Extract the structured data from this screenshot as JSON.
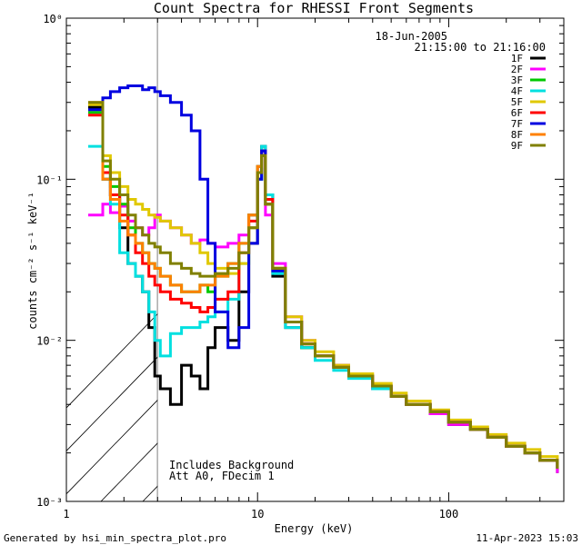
{
  "chart_data": {
    "type": "line",
    "title": "Count Spectra for RHESSI Front Segments",
    "xlabel": "Energy (keV)",
    "ylabel": "counts cm⁻² s⁻¹ keV⁻¹",
    "xscale": "log",
    "yscale": "log",
    "xlim": [
      1,
      400
    ],
    "ylim": [
      0.001,
      1
    ],
    "x_ticks": [
      {
        "value": 1,
        "label": "1"
      },
      {
        "value": 10,
        "label": "10"
      },
      {
        "value": 100,
        "label": "100"
      }
    ],
    "y_ticks": [
      {
        "value": 1,
        "label": "10⁰"
      },
      {
        "value": 0.1,
        "label": "10⁻¹"
      },
      {
        "value": 0.01,
        "label": "10⁻²"
      },
      {
        "value": 0.001,
        "label": "10⁻³"
      }
    ],
    "date_label": "18-Jun-2005",
    "time_range_label": "21:15:00 to 21:16:00",
    "hatched_region_max_keV": 3,
    "annotation_lines": [
      "Includes Background",
      "Att A0, FDecim 1"
    ],
    "footer_left": "Generated by hsi_min_spectra_plot.pro",
    "footer_right": "11-Apr-2023 15:03",
    "series": [
      {
        "name": "1F",
        "color": "#000000",
        "x": [
          1.3,
          1.55,
          1.7,
          1.9,
          2.1,
          2.3,
          2.5,
          2.7,
          2.9,
          3.1,
          3.5,
          4,
          4.5,
          5,
          5.5,
          6,
          7,
          8,
          9,
          10,
          10.5,
          11,
          12,
          14,
          17,
          20,
          25,
          30,
          40,
          50,
          60,
          80,
          100,
          130,
          160,
          200,
          250,
          300,
          370
        ],
        "y": [
          0.28,
          0.1,
          0.08,
          0.05,
          0.03,
          0.025,
          0.02,
          0.012,
          0.006,
          0.005,
          0.004,
          0.007,
          0.006,
          0.005,
          0.009,
          0.012,
          0.01,
          0.02,
          0.04,
          0.1,
          0.16,
          0.08,
          0.025,
          0.012,
          0.009,
          0.008,
          0.007,
          0.006,
          0.005,
          0.0045,
          0.004,
          0.0035,
          0.003,
          0.0028,
          0.0025,
          0.0022,
          0.002,
          0.0018,
          0.0015
        ]
      },
      {
        "name": "2F",
        "color": "#ff00ff",
        "x": [
          1.3,
          1.55,
          1.7,
          1.9,
          2.1,
          2.3,
          2.5,
          2.7,
          2.9,
          3.1,
          3.5,
          4,
          4.5,
          5,
          5.5,
          6,
          7,
          8,
          9,
          10,
          10.5,
          11,
          12,
          14,
          17,
          20,
          25,
          30,
          40,
          50,
          60,
          80,
          100,
          130,
          160,
          200,
          250,
          300,
          370
        ],
        "y": [
          0.06,
          0.07,
          0.062,
          0.068,
          0.055,
          0.05,
          0.045,
          0.05,
          0.06,
          0.055,
          0.05,
          0.045,
          0.04,
          0.042,
          0.04,
          0.038,
          0.04,
          0.045,
          0.06,
          0.12,
          0.15,
          0.06,
          0.03,
          0.014,
          0.01,
          0.008,
          0.007,
          0.006,
          0.005,
          0.0045,
          0.004,
          0.0035,
          0.003,
          0.0028,
          0.0025,
          0.0022,
          0.002,
          0.0018,
          0.0015
        ]
      },
      {
        "name": "3F",
        "color": "#00c800",
        "x": [
          1.3,
          1.55,
          1.7,
          1.9,
          2.1,
          2.3,
          2.5,
          2.7,
          2.9,
          3.1,
          3.5,
          4,
          4.5,
          5,
          5.5,
          6,
          7,
          8,
          9,
          10,
          10.5,
          11,
          12,
          14,
          17,
          20,
          25,
          30,
          40,
          50,
          60,
          80,
          100,
          130,
          160,
          200,
          250,
          300,
          370
        ],
        "y": [
          0.26,
          0.12,
          0.09,
          0.07,
          0.05,
          0.04,
          0.035,
          0.03,
          0.028,
          0.025,
          0.022,
          0.02,
          0.02,
          0.022,
          0.02,
          0.025,
          0.03,
          0.04,
          0.06,
          0.12,
          0.14,
          0.07,
          0.028,
          0.013,
          0.009,
          0.008,
          0.0068,
          0.006,
          0.0052,
          0.0045,
          0.004,
          0.0036,
          0.0031,
          0.0028,
          0.0025,
          0.0022,
          0.002,
          0.0018,
          0.0016
        ]
      },
      {
        "name": "4F",
        "color": "#00e0e0",
        "x": [
          1.3,
          1.55,
          1.7,
          1.9,
          2.1,
          2.3,
          2.5,
          2.7,
          2.9,
          3.1,
          3.5,
          4,
          4.5,
          5,
          5.5,
          6,
          7,
          8,
          9,
          10,
          10.5,
          11,
          12,
          14,
          17,
          20,
          25,
          30,
          40,
          50,
          60,
          80,
          100,
          130,
          160,
          200,
          250,
          300,
          370
        ],
        "y": [
          0.16,
          0.1,
          0.07,
          0.035,
          0.03,
          0.025,
          0.02,
          0.015,
          0.01,
          0.008,
          0.011,
          0.012,
          0.012,
          0.013,
          0.014,
          0.015,
          0.018,
          0.03,
          0.05,
          0.1,
          0.16,
          0.08,
          0.026,
          0.012,
          0.009,
          0.0075,
          0.0065,
          0.0058,
          0.005,
          0.0045,
          0.004,
          0.0036,
          0.0031,
          0.0028,
          0.0025,
          0.0022,
          0.002,
          0.0018,
          0.0016
        ]
      },
      {
        "name": "5F",
        "color": "#e0c800",
        "x": [
          1.3,
          1.55,
          1.7,
          1.9,
          2.1,
          2.3,
          2.5,
          2.7,
          2.9,
          3.1,
          3.5,
          4,
          4.5,
          5,
          5.5,
          6,
          7,
          8,
          9,
          10,
          10.5,
          11,
          12,
          14,
          17,
          20,
          25,
          30,
          40,
          50,
          60,
          80,
          100,
          130,
          160,
          200,
          250,
          300,
          370
        ],
        "y": [
          0.29,
          0.14,
          0.11,
          0.09,
          0.075,
          0.07,
          0.065,
          0.06,
          0.058,
          0.055,
          0.05,
          0.045,
          0.04,
          0.035,
          0.03,
          0.028,
          0.026,
          0.03,
          0.05,
          0.11,
          0.14,
          0.07,
          0.028,
          0.014,
          0.01,
          0.0085,
          0.007,
          0.0062,
          0.0054,
          0.0047,
          0.0042,
          0.0037,
          0.0032,
          0.0029,
          0.0026,
          0.0023,
          0.0021,
          0.0019,
          0.0017
        ]
      },
      {
        "name": "6F",
        "color": "#ff0000",
        "x": [
          1.3,
          1.55,
          1.7,
          1.9,
          2.1,
          2.3,
          2.5,
          2.7,
          2.9,
          3.1,
          3.5,
          4,
          4.5,
          5,
          5.5,
          6,
          7,
          8,
          9,
          10,
          10.5,
          11,
          12,
          14,
          17,
          20,
          25,
          30,
          40,
          50,
          60,
          80,
          100,
          130,
          160,
          200,
          250,
          300,
          370
        ],
        "y": [
          0.25,
          0.11,
          0.08,
          0.06,
          0.045,
          0.035,
          0.03,
          0.025,
          0.022,
          0.02,
          0.018,
          0.017,
          0.016,
          0.015,
          0.016,
          0.018,
          0.02,
          0.035,
          0.055,
          0.11,
          0.15,
          0.075,
          0.028,
          0.013,
          0.0095,
          0.008,
          0.0068,
          0.006,
          0.0052,
          0.0045,
          0.004,
          0.0036,
          0.0031,
          0.0028,
          0.0025,
          0.0022,
          0.002,
          0.0018,
          0.0016
        ]
      },
      {
        "name": "7F",
        "color": "#0000e0",
        "x": [
          1.3,
          1.55,
          1.7,
          1.9,
          2.1,
          2.3,
          2.5,
          2.7,
          2.9,
          3.1,
          3.5,
          4,
          4.5,
          5,
          5.5,
          6,
          7,
          8,
          9,
          10,
          10.5,
          11,
          12,
          14,
          17,
          20,
          25,
          30,
          40,
          50,
          60,
          80,
          100,
          130,
          160,
          200,
          250,
          300,
          370
        ],
        "y": [
          0.27,
          0.32,
          0.35,
          0.37,
          0.38,
          0.38,
          0.36,
          0.37,
          0.35,
          0.33,
          0.3,
          0.25,
          0.2,
          0.1,
          0.04,
          0.015,
          0.009,
          0.012,
          0.04,
          0.1,
          0.15,
          0.07,
          0.027,
          0.013,
          0.0095,
          0.008,
          0.0068,
          0.006,
          0.0052,
          0.0045,
          0.004,
          0.0036,
          0.0031,
          0.0028,
          0.0025,
          0.0022,
          0.002,
          0.0018,
          0.0016
        ]
      },
      {
        "name": "8F",
        "color": "#ff8000",
        "x": [
          1.3,
          1.55,
          1.7,
          1.9,
          2.1,
          2.3,
          2.5,
          2.7,
          2.9,
          3.1,
          3.5,
          4,
          4.5,
          5,
          5.5,
          6,
          7,
          8,
          9,
          10,
          10.5,
          11,
          12,
          14,
          17,
          20,
          25,
          30,
          40,
          50,
          60,
          80,
          100,
          130,
          160,
          200,
          250,
          300,
          370
        ],
        "y": [
          0.3,
          0.1,
          0.075,
          0.055,
          0.045,
          0.04,
          0.035,
          0.03,
          0.028,
          0.025,
          0.022,
          0.02,
          0.02,
          0.022,
          0.022,
          0.025,
          0.03,
          0.04,
          0.06,
          0.12,
          0.14,
          0.07,
          0.028,
          0.013,
          0.0095,
          0.008,
          0.0068,
          0.006,
          0.0052,
          0.0045,
          0.004,
          0.0036,
          0.0031,
          0.0028,
          0.0025,
          0.0022,
          0.002,
          0.0018,
          0.0016
        ]
      },
      {
        "name": "9F",
        "color": "#808000",
        "x": [
          1.3,
          1.55,
          1.7,
          1.9,
          2.1,
          2.3,
          2.5,
          2.7,
          2.9,
          3.1,
          3.5,
          4,
          4.5,
          5,
          5.5,
          6,
          7,
          8,
          9,
          10,
          10.5,
          11,
          12,
          14,
          17,
          20,
          25,
          30,
          40,
          50,
          60,
          80,
          100,
          130,
          160,
          200,
          250,
          300,
          370
        ],
        "y": [
          0.3,
          0.13,
          0.1,
          0.08,
          0.06,
          0.05,
          0.045,
          0.04,
          0.038,
          0.035,
          0.03,
          0.028,
          0.026,
          0.025,
          0.025,
          0.026,
          0.028,
          0.035,
          0.05,
          0.11,
          0.14,
          0.07,
          0.028,
          0.013,
          0.0095,
          0.008,
          0.0068,
          0.006,
          0.0052,
          0.0045,
          0.004,
          0.0036,
          0.0031,
          0.0028,
          0.0025,
          0.0022,
          0.002,
          0.0018,
          0.0016
        ]
      }
    ]
  }
}
